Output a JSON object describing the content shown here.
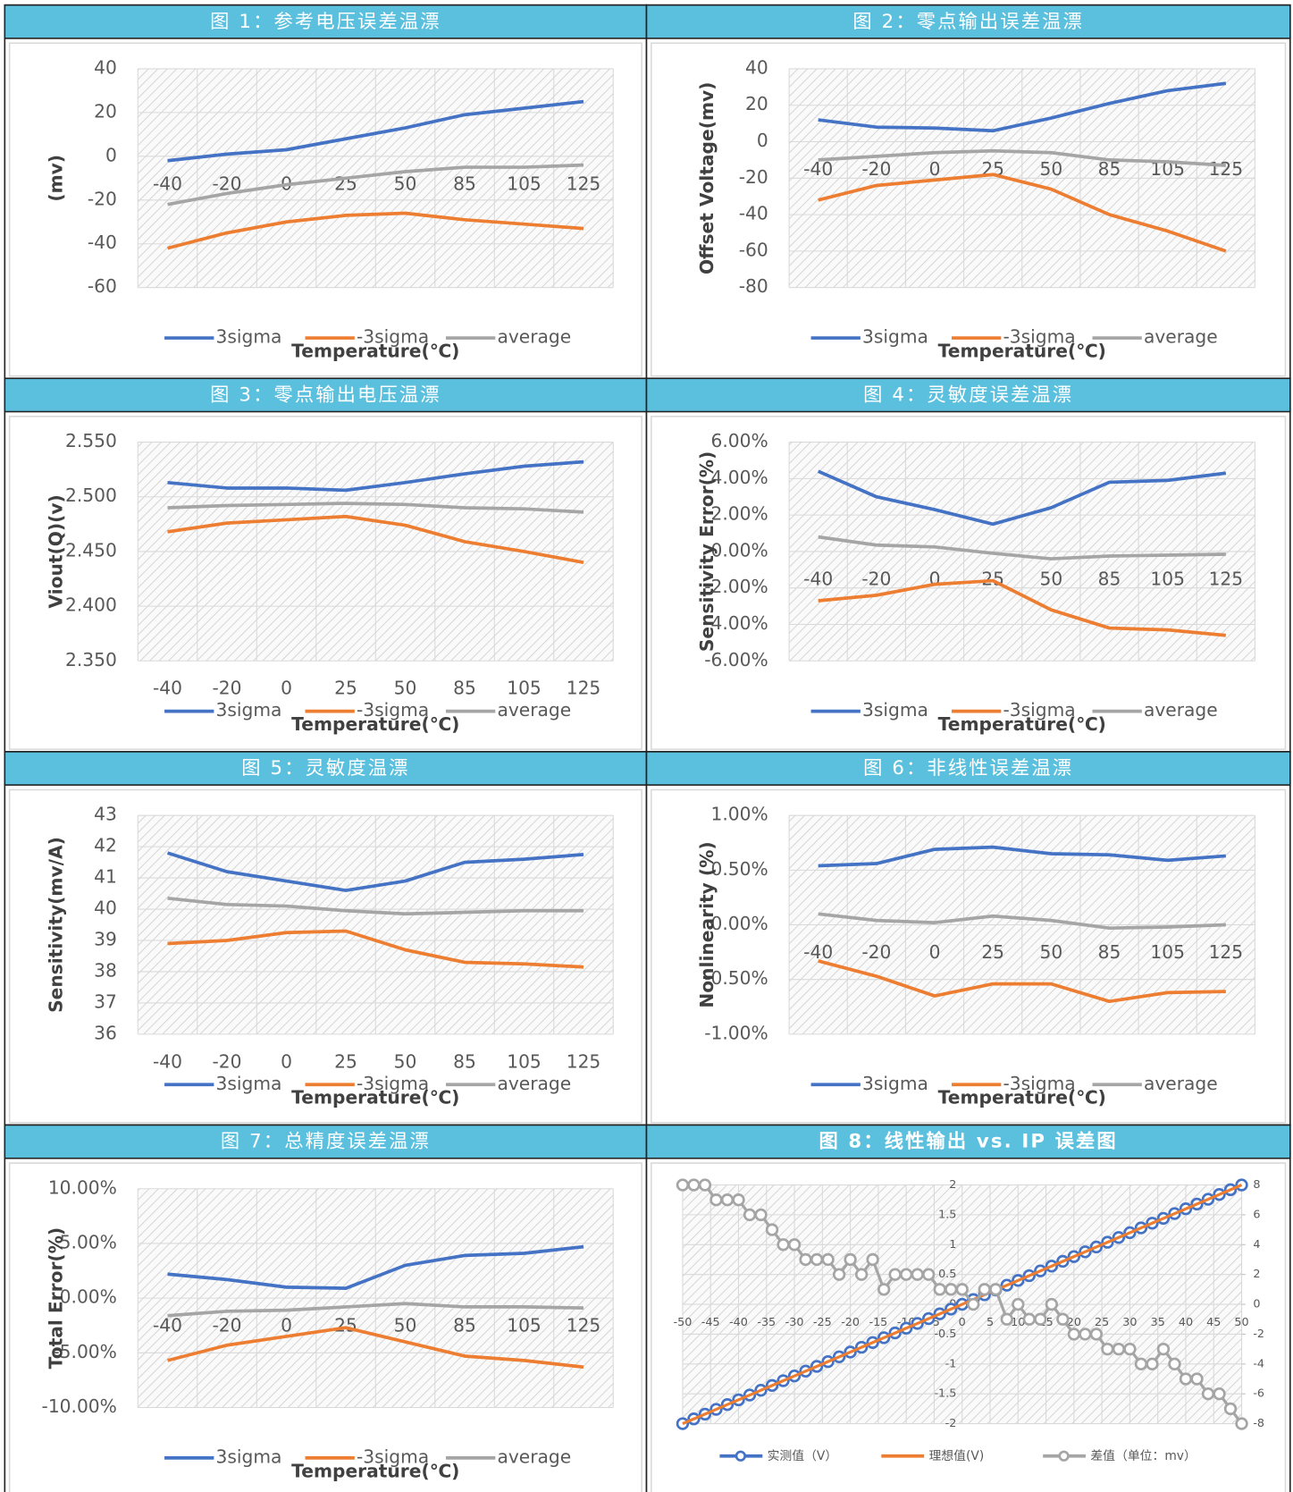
{
  "chart_data": [
    {
      "type": "line",
      "title": "图 1：参考电压误差温漂",
      "xlabel": "Temperature(℃)",
      "ylabel": "(mv)",
      "categories": [
        "-40",
        "-20",
        "0",
        "25",
        "50",
        "85",
        "105",
        "125"
      ],
      "ylim": [
        -60,
        40
      ],
      "yticks": [
        -60,
        -40,
        -20,
        0,
        20,
        40
      ],
      "grid": true,
      "series": [
        {
          "name": "3sigma",
          "color": "#4472c4",
          "values": [
            -2,
            1,
            3,
            8,
            13,
            19,
            22,
            25
          ]
        },
        {
          "name": "-3sigma",
          "color": "#ed7d31",
          "values": [
            -42,
            -35,
            -30,
            -27,
            -26,
            -29,
            -31,
            -33
          ]
        },
        {
          "name": "average",
          "color": "#a5a5a5",
          "values": [
            -22,
            -17,
            -13,
            -10,
            -7,
            -5,
            -5,
            -4
          ]
        }
      ]
    },
    {
      "type": "line",
      "title": "图 2：零点输出误差温漂",
      "xlabel": "Temperature(℃)",
      "ylabel": "Offset Voltage(mv)",
      "categories": [
        "-40",
        "-20",
        "0",
        "25",
        "50",
        "85",
        "105",
        "125"
      ],
      "ylim": [
        -80,
        40
      ],
      "yticks": [
        -80,
        -60,
        -40,
        -20,
        0,
        20,
        40
      ],
      "grid": true,
      "series": [
        {
          "name": "3sigma",
          "color": "#4472c4",
          "values": [
            12,
            8,
            7.5,
            6,
            13,
            21,
            28,
            32
          ]
        },
        {
          "name": "-3sigma",
          "color": "#ed7d31",
          "values": [
            -32,
            -24,
            -21,
            -18,
            -26,
            -40,
            -49,
            -60
          ]
        },
        {
          "name": "average",
          "color": "#a5a5a5",
          "values": [
            -10,
            -8,
            -6,
            -5,
            -6,
            -10,
            -11,
            -13
          ]
        }
      ]
    },
    {
      "type": "line",
      "title": "图 3：零点输出电压温漂",
      "xlabel": "Temperature(℃)",
      "ylabel": "Viout(Q)(v)",
      "categories": [
        "-40",
        "-20",
        "0",
        "25",
        "50",
        "85",
        "105",
        "125"
      ],
      "ylim": [
        2.35,
        2.55
      ],
      "yticks": [
        {
          "value": 2.35,
          "label": "2.350"
        },
        {
          "value": 2.4,
          "label": "2.400"
        },
        {
          "value": 2.45,
          "label": "2.450"
        },
        {
          "value": 2.5,
          "label": "2.500"
        },
        {
          "value": 2.55,
          "label": "2.550"
        }
      ],
      "grid": true,
      "series": [
        {
          "name": "3sigma",
          "color": "#4472c4",
          "values": [
            2.513,
            2.508,
            2.508,
            2.506,
            2.513,
            2.521,
            2.528,
            2.532
          ]
        },
        {
          "name": "-3sigma",
          "color": "#ed7d31",
          "values": [
            2.468,
            2.476,
            2.479,
            2.482,
            2.474,
            2.459,
            2.45,
            2.44
          ]
        },
        {
          "name": "average",
          "color": "#a5a5a5",
          "values": [
            2.49,
            2.492,
            2.493,
            2.494,
            2.493,
            2.49,
            2.489,
            2.486
          ]
        }
      ]
    },
    {
      "type": "line",
      "title": "图 4：灵敏度误差温漂",
      "xlabel": "Temperature(℃)",
      "ylabel": "Sensitivity Error(%)",
      "categories": [
        "-40",
        "-20",
        "0",
        "25",
        "50",
        "85",
        "105",
        "125"
      ],
      "ylim": [
        -6,
        6
      ],
      "yticks": [
        {
          "value": -6,
          "label": "-6.00%"
        },
        {
          "value": -4,
          "label": "-4.00%"
        },
        {
          "value": -2,
          "label": "-2.00%"
        },
        {
          "value": 0,
          "label": "0.00%"
        },
        {
          "value": 2,
          "label": "2.00%"
        },
        {
          "value": 4,
          "label": "4.00%"
        },
        {
          "value": 6,
          "label": "6.00%"
        }
      ],
      "grid": true,
      "series": [
        {
          "name": "3sigma",
          "color": "#4472c4",
          "values": [
            4.4,
            3.0,
            2.3,
            1.5,
            2.4,
            3.8,
            3.9,
            4.3
          ]
        },
        {
          "name": "-3sigma",
          "color": "#ed7d31",
          "values": [
            -2.7,
            -2.4,
            -1.8,
            -1.6,
            -3.2,
            -4.2,
            -4.3,
            -4.6
          ]
        },
        {
          "name": "average",
          "color": "#a5a5a5",
          "values": [
            0.8,
            0.35,
            0.25,
            -0.1,
            -0.4,
            -0.25,
            -0.2,
            -0.15
          ]
        }
      ]
    },
    {
      "type": "line",
      "title": "图 5：灵敏度温漂",
      "xlabel": "Temperature(℃)",
      "ylabel": "Sensitivity(mv/A)",
      "categories": [
        "-40",
        "-20",
        "0",
        "25",
        "50",
        "85",
        "105",
        "125"
      ],
      "ylim": [
        36,
        43
      ],
      "yticks": [
        36,
        37,
        38,
        39,
        40,
        41,
        42,
        43
      ],
      "grid": true,
      "series": [
        {
          "name": "3sigma",
          "color": "#4472c4",
          "values": [
            41.8,
            41.2,
            40.9,
            40.6,
            40.9,
            41.5,
            41.6,
            41.75
          ]
        },
        {
          "name": "-3sigma",
          "color": "#ed7d31",
          "values": [
            38.9,
            39.0,
            39.25,
            39.3,
            38.7,
            38.3,
            38.25,
            38.15
          ]
        },
        {
          "name": "average",
          "color": "#a5a5a5",
          "values": [
            40.35,
            40.15,
            40.1,
            39.95,
            39.85,
            39.9,
            39.95,
            39.95
          ]
        }
      ]
    },
    {
      "type": "line",
      "title": "图 6：非线性误差温漂",
      "xlabel": "Temperature(℃)",
      "ylabel": "Nonlinearity (%)",
      "categories": [
        "-40",
        "-20",
        "0",
        "25",
        "50",
        "85",
        "105",
        "125"
      ],
      "ylim": [
        -1,
        1
      ],
      "yticks": [
        {
          "value": -1,
          "label": "-1.00%"
        },
        {
          "value": -0.5,
          "label": "-0.50%"
        },
        {
          "value": 0,
          "label": "0.00%"
        },
        {
          "value": 0.5,
          "label": "0.50%"
        },
        {
          "value": 1,
          "label": "1.00%"
        }
      ],
      "grid": true,
      "series": [
        {
          "name": "3sigma",
          "color": "#4472c4",
          "values": [
            0.54,
            0.56,
            0.69,
            0.71,
            0.65,
            0.64,
            0.59,
            0.63
          ]
        },
        {
          "name": "-3sigma",
          "color": "#ed7d31",
          "values": [
            -0.33,
            -0.47,
            -0.65,
            -0.54,
            -0.54,
            -0.7,
            -0.62,
            -0.61
          ]
        },
        {
          "name": "average",
          "color": "#a5a5a5",
          "values": [
            0.1,
            0.04,
            0.02,
            0.08,
            0.04,
            -0.03,
            -0.02,
            0.0
          ]
        }
      ]
    },
    {
      "type": "line",
      "title": "图 7：总精度误差温漂",
      "xlabel": "Temperature(℃)",
      "ylabel": "Total Error(%)",
      "categories": [
        "-40",
        "-20",
        "0",
        "25",
        "50",
        "85",
        "105",
        "125"
      ],
      "ylim": [
        -10,
        10
      ],
      "yticks": [
        {
          "value": -10,
          "label": "-10.00%"
        },
        {
          "value": -5,
          "label": "-5.00%"
        },
        {
          "value": 0,
          "label": "0.00%"
        },
        {
          "value": 5,
          "label": "5.00%"
        },
        {
          "value": 10,
          "label": "10.00%"
        }
      ],
      "grid": true,
      "series": [
        {
          "name": "3sigma",
          "color": "#4472c4",
          "values": [
            2.2,
            1.7,
            1.0,
            0.9,
            3.0,
            3.9,
            4.1,
            4.7
          ]
        },
        {
          "name": "-3sigma",
          "color": "#ed7d31",
          "values": [
            -5.7,
            -4.3,
            -3.5,
            -2.7,
            -4.0,
            -5.3,
            -5.7,
            -6.3
          ]
        },
        {
          "name": "average",
          "color": "#a5a5a5",
          "values": [
            -1.6,
            -1.2,
            -1.1,
            -0.8,
            -0.5,
            -0.8,
            -0.8,
            -0.9
          ]
        }
      ]
    },
    {
      "type": "line",
      "title": "图 8：线性输出 vs. IP 误差图",
      "title_bold": true,
      "x": [
        -50,
        -48,
        -46,
        -44,
        -42,
        -40,
        -38,
        -36,
        -34,
        -32,
        -30,
        -28,
        -26,
        -24,
        -22,
        -20,
        -18,
        -16,
        -14,
        -12,
        -10,
        -8,
        -6,
        -4,
        -2,
        0,
        2,
        4,
        6,
        8,
        10,
        12,
        14,
        16,
        18,
        20,
        22,
        24,
        26,
        28,
        30,
        32,
        34,
        36,
        38,
        40,
        42,
        44,
        46,
        48,
        50
      ],
      "xlim": [
        -50,
        50
      ],
      "xticks": [
        -50,
        -45,
        -40,
        -35,
        -30,
        -25,
        -20,
        -15,
        -10,
        -5,
        0,
        5,
        10,
        15,
        20,
        25,
        30,
        35,
        40,
        45,
        50
      ],
      "ylim": [
        -2,
        2
      ],
      "yticks": [
        -2,
        -1.5,
        -1,
        -0.5,
        0,
        0.5,
        1,
        1.5,
        2
      ],
      "y2lim": [
        -8,
        8
      ],
      "y2ticks": [
        -8,
        -6,
        -4,
        -2,
        0,
        2,
        4,
        6,
        8
      ],
      "grid": true,
      "series": [
        {
          "name": "实测值（V）",
          "color": "#4472c4",
          "marker": "circle",
          "values": [
            -2,
            -1.92,
            -1.84,
            -1.76,
            -1.68,
            -1.6,
            -1.52,
            -1.44,
            -1.36,
            -1.28,
            -1.2,
            -1.12,
            -1.04,
            -0.96,
            -0.88,
            -0.8,
            -0.72,
            -0.64,
            -0.56,
            -0.48,
            -0.4,
            -0.32,
            -0.24,
            -0.16,
            -0.08,
            0,
            0.08,
            0.16,
            0.24,
            0.32,
            0.4,
            0.48,
            0.56,
            0.64,
            0.72,
            0.8,
            0.88,
            0.96,
            1.04,
            1.12,
            1.2,
            1.28,
            1.36,
            1.44,
            1.52,
            1.6,
            1.68,
            1.76,
            1.84,
            1.92,
            2
          ]
        },
        {
          "name": "理想值(V)",
          "color": "#ed7d31",
          "values": [
            -2,
            -1.92,
            -1.84,
            -1.76,
            -1.68,
            -1.6,
            -1.52,
            -1.44,
            -1.36,
            -1.28,
            -1.2,
            -1.12,
            -1.04,
            -0.96,
            -0.88,
            -0.8,
            -0.72,
            -0.64,
            -0.56,
            -0.48,
            -0.4,
            -0.32,
            -0.24,
            -0.16,
            -0.08,
            0,
            0.08,
            0.16,
            0.24,
            0.32,
            0.4,
            0.48,
            0.56,
            0.64,
            0.72,
            0.8,
            0.88,
            0.96,
            1.04,
            1.12,
            1.2,
            1.28,
            1.36,
            1.44,
            1.52,
            1.6,
            1.68,
            1.76,
            1.84,
            1.92,
            2
          ]
        },
        {
          "name": "差值（单位：mv）",
          "color": "#a5a5a5",
          "marker": "circle",
          "axis": "y2",
          "values": [
            8,
            8,
            8,
            7,
            7,
            7,
            6,
            6,
            5,
            4,
            4,
            3,
            3,
            3,
            2,
            3,
            2,
            3,
            1,
            2,
            2,
            2,
            2,
            1,
            1,
            1,
            0,
            1,
            1,
            -1,
            0,
            -1,
            -1,
            0,
            -1,
            -2,
            -2,
            -2,
            -3,
            -3,
            -3,
            -4,
            -4,
            -3,
            -4,
            -5,
            -5,
            -6,
            -6,
            -7,
            -8
          ]
        }
      ]
    }
  ]
}
